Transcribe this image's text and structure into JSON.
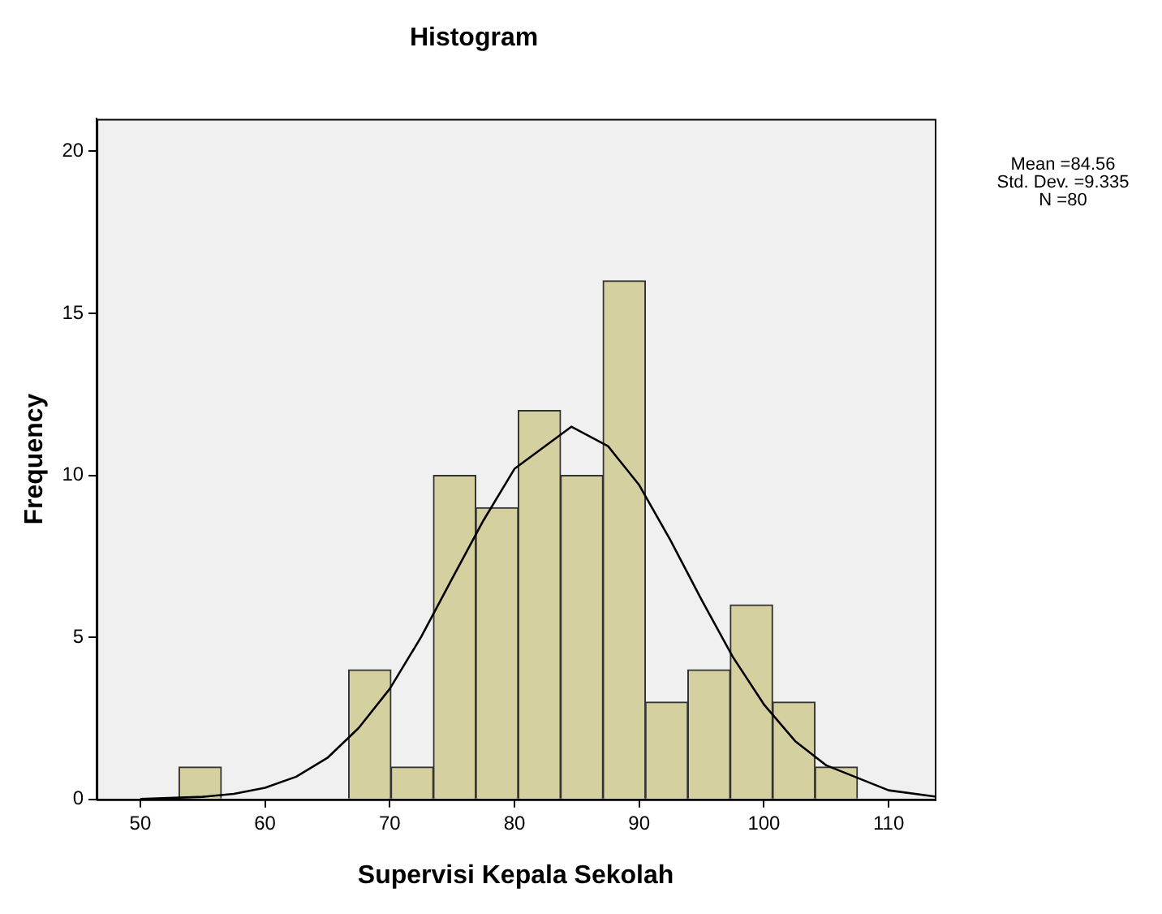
{
  "chart_data": {
    "type": "histogram",
    "title": "Histogram",
    "xlabel": "Supervisi Kepala Sekolah",
    "ylabel": "Frequency",
    "bins": [
      53.1,
      56.5,
      59.9,
      63.3,
      66.7,
      70.1,
      73.5,
      76.9,
      80.3,
      83.7,
      87.1,
      90.5,
      93.9,
      97.3,
      100.7,
      104.1,
      107.5
    ],
    "values": [
      1,
      0,
      0,
      0,
      4,
      1,
      10,
      9,
      12,
      10,
      16,
      3,
      4,
      6,
      3,
      1
    ],
    "color": "#d5d0a0",
    "series": [
      {
        "type": "line",
        "color": "#000000",
        "x": [
          50,
          55,
          57.5,
          60,
          62.5,
          65,
          67.5,
          70,
          72.5,
          75,
          77.5,
          80,
          84.56,
          87.5,
          90,
          92.5,
          95,
          97.5,
          100,
          102.5,
          105,
          110,
          113.7
        ],
        "values": [
          0.01,
          0.08,
          0.17,
          0.36,
          0.7,
          1.28,
          2.2,
          3.41,
          5.0,
          6.81,
          8.6,
          10.2,
          11.5,
          10.9,
          9.7,
          8.0,
          6.16,
          4.4,
          2.93,
          1.8,
          1.05,
          0.28,
          0.09
        ]
      }
    ],
    "xlim": [
      46.5,
      113.7
    ],
    "xticks": [
      50,
      60,
      70,
      80,
      90,
      100,
      110
    ],
    "ylim": [
      0,
      21
    ],
    "yticks": [
      0,
      5,
      10,
      15,
      20
    ],
    "grid": false,
    "legend": false,
    "marker": "none",
    "annotations": [
      "Mean =84.56",
      "Std. Dev. =9.335",
      "N =80"
    ]
  }
}
